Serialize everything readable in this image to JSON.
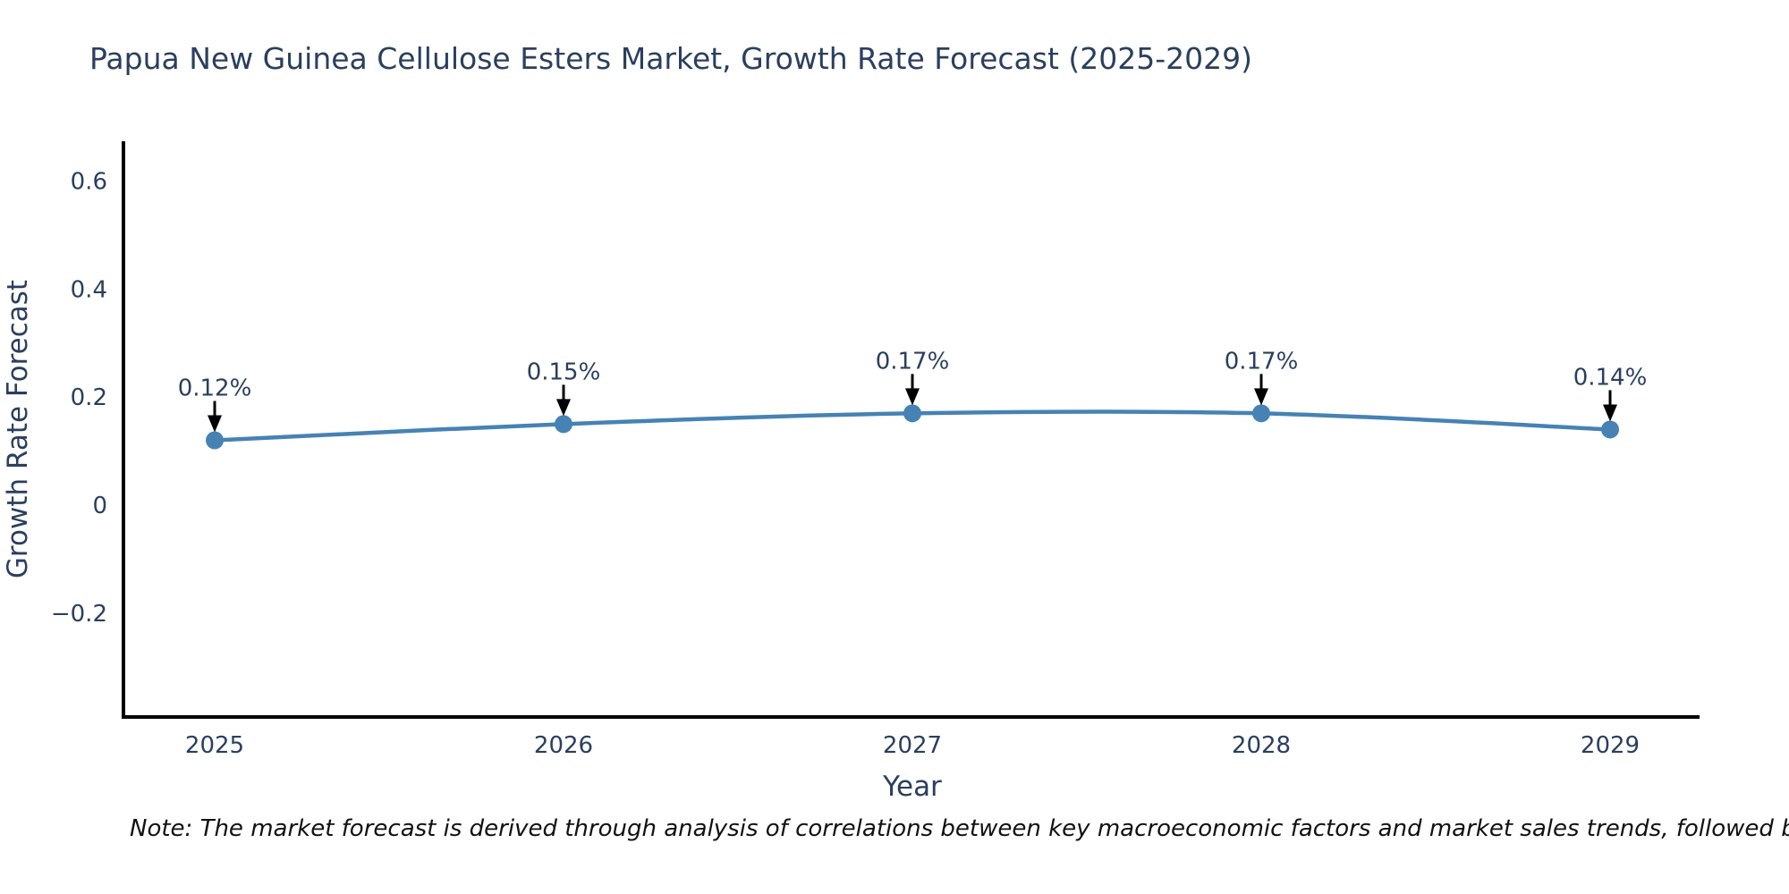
{
  "page": {
    "background_color": "#ffffff"
  },
  "chart_data": {
    "type": "line",
    "title": "Papua New Guinea Cellulose Esters Market, Growth Rate Forecast (2025-2029)",
    "xlabel": "Year",
    "ylabel": "Growth Rate Forecast",
    "x": [
      "2025",
      "2026",
      "2027",
      "2028",
      "2029"
    ],
    "series": [
      {
        "name": "Growth Rate Forecast",
        "values": [
          0.12,
          0.15,
          0.17,
          0.17,
          0.14
        ]
      }
    ],
    "point_labels": [
      "0.12%",
      "0.15%",
      "0.17%",
      "0.17%",
      "0.14%"
    ],
    "y_ticks": [
      0.6,
      0.4,
      0.2,
      0,
      -0.2
    ],
    "y_tick_labels": [
      "0.6",
      "0.4",
      "0.2",
      "0",
      "−0.2"
    ],
    "ylim": [
      -0.39,
      0.67
    ],
    "grid": false,
    "legend_position": "none",
    "line_shape": "spline",
    "line_color": "#4682b4",
    "marker_color": "#4682b4",
    "axis_color": "#000000",
    "text_color": "#2a3f5f",
    "annotation_color": "#2a3f5f",
    "arrow_color": "#000000"
  },
  "note": {
    "text": "Note: The market forecast is derived through analysis of correlations between key macroeconomic factors and market sales trends, followed by predictive modeling to project future sa"
  }
}
